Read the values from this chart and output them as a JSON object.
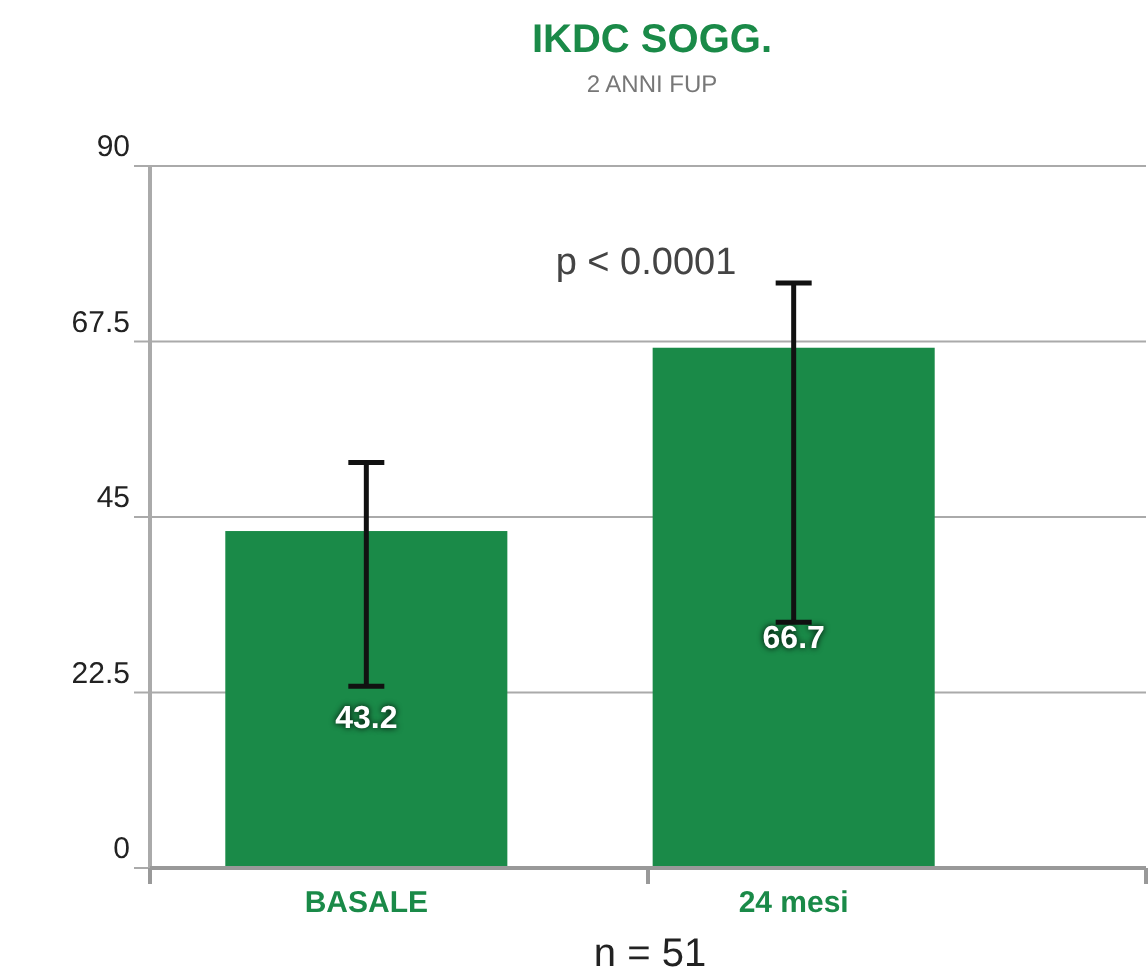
{
  "chart_data": {
    "type": "bar",
    "title": "IKDC SOGG.",
    "subtitle": "2 ANNI FUP",
    "xlabel": "n = 51",
    "categories": [
      "BASALE",
      "24 mesi"
    ],
    "values": [
      43.2,
      66.7
    ],
    "errors": [
      [
        23.3,
        52
      ],
      [
        31.5,
        75
      ]
    ],
    "color": "#1a8a48",
    "ylim": [
      0,
      90
    ],
    "yticks": [
      0,
      22.5,
      45,
      67.5,
      90
    ],
    "grid": "y",
    "data_labels": true,
    "annotations": [
      "p < 0.0001"
    ]
  }
}
